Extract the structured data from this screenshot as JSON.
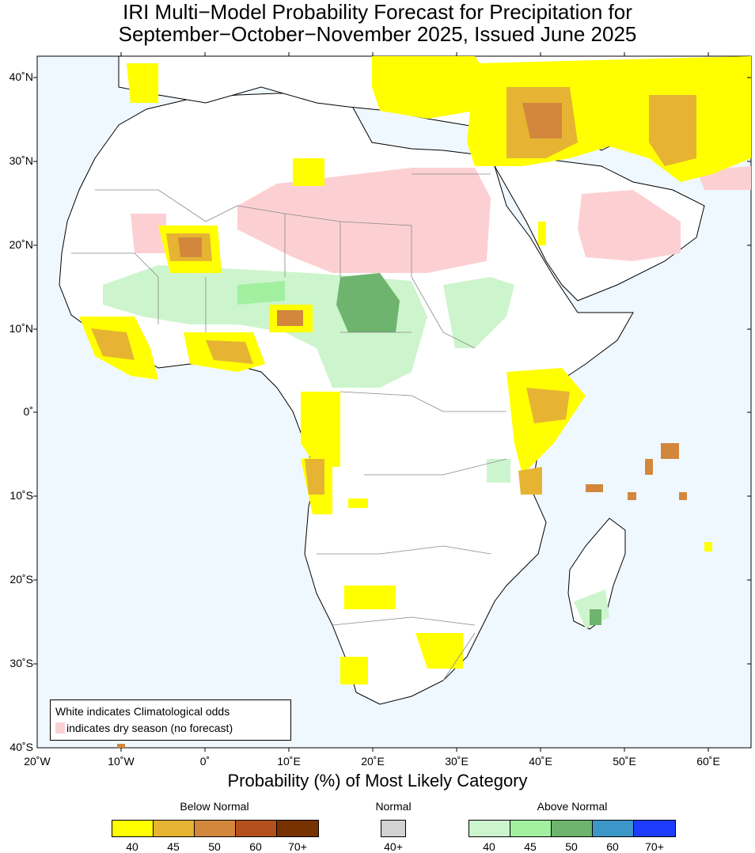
{
  "title": {
    "line1": "IRI Multi−Model Probability Forecast for Precipitation for",
    "line2": "September−October−November 2025, Issued June 2025"
  },
  "lat_labels": [
    "40˚N",
    "30˚N",
    "20˚N",
    "10˚N",
    "0˚",
    "10˚S",
    "20˚S",
    "30˚S",
    "40˚S"
  ],
  "lon_labels": [
    "20˚W",
    "10˚W",
    "0˚",
    "10˚E",
    "20˚E",
    "30˚E",
    "40˚E",
    "50˚E",
    "60˚E"
  ],
  "axis_title": "Probability (%) of Most Likely Category",
  "note": {
    "line1": "White indicates Climatological odds",
    "line2": "indicates dry season (no forecast)"
  },
  "legend": {
    "below_normal": {
      "label": "Below Normal",
      "colors": [
        "#ffff00",
        "#e6b432",
        "#d2873c",
        "#b4501e",
        "#783200"
      ],
      "ticks": [
        "40",
        "45",
        "50",
        "60",
        "70+"
      ]
    },
    "normal": {
      "label": "Normal",
      "colors": [
        "#d2d2d2"
      ],
      "ticks": [
        "40+"
      ]
    },
    "above_normal": {
      "label": "Above Normal",
      "colors": [
        "#cdf5cd",
        "#a0f0a0",
        "#6eb46e",
        "#3c96c8",
        "#1e3cff"
      ],
      "ticks": [
        "40",
        "45",
        "50",
        "60",
        "70+"
      ]
    }
  },
  "colors": {
    "ocean": "#f0f8ff",
    "land": "#ffffff",
    "dry_season": "#fcd0d2"
  }
}
